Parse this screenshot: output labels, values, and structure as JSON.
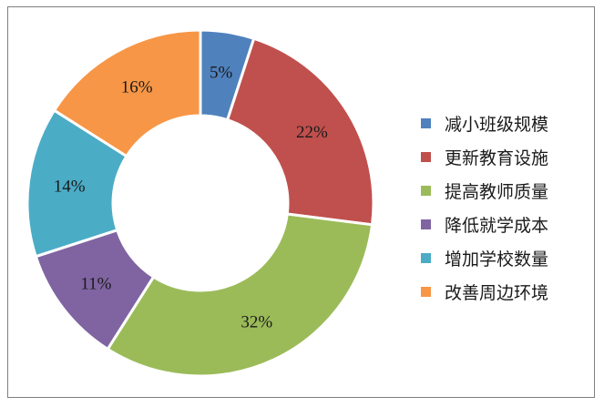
{
  "chart_data": {
    "type": "pie",
    "style": "donut",
    "categories": [
      "减小班级规模",
      "更新教育设施",
      "提高教师质量",
      "降低就学成本",
      "增加学校数量",
      "改善周边环境"
    ],
    "values": [
      5,
      22,
      32,
      11,
      14,
      16
    ],
    "labels": [
      "5%",
      "22%",
      "32%",
      "11%",
      "14%",
      "16%"
    ],
    "colors": [
      "#4f81bd",
      "#c0504d",
      "#9bbb59",
      "#8064a2",
      "#4bacc6",
      "#f79646"
    ],
    "legend_position": "right"
  }
}
